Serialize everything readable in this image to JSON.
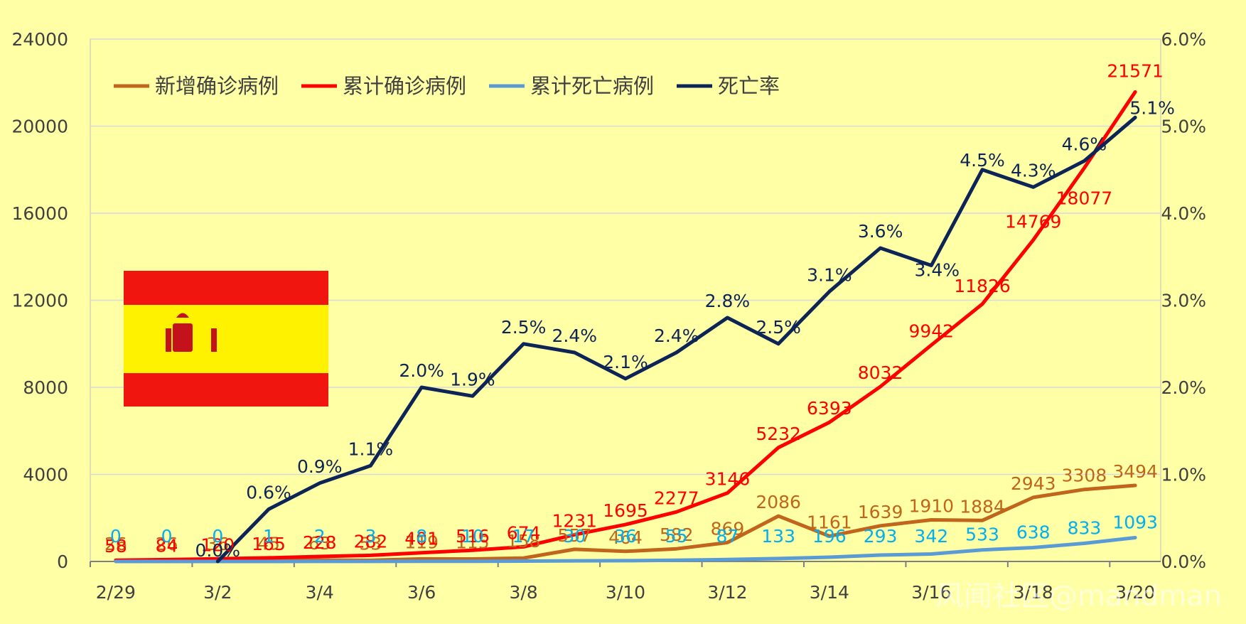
{
  "chart_data": {
    "type": "line",
    "x": [
      "2/29",
      "3/1",
      "3/2",
      "3/3",
      "3/4",
      "3/5",
      "3/6",
      "3/7",
      "3/8",
      "3/9",
      "3/10",
      "3/11",
      "3/12",
      "3/13",
      "3/14",
      "3/15",
      "3/16",
      "3/17",
      "3/18",
      "3/19",
      "3/20"
    ],
    "x_tick_labels": [
      "2/29",
      "3/2",
      "3/4",
      "3/6",
      "3/8",
      "3/10",
      "3/12",
      "3/14",
      "3/16",
      "3/18",
      "3/20"
    ],
    "y_left": {
      "range": [
        0,
        24000
      ],
      "ticks": [
        "0",
        "4000",
        "8000",
        "12000",
        "16000",
        "20000",
        "24000"
      ]
    },
    "y_right": {
      "range": [
        0,
        0.06
      ],
      "ticks": [
        "0.0%",
        "1.0%",
        "2.0%",
        "3.0%",
        "4.0%",
        "5.0%",
        "6.0%"
      ]
    },
    "gridlines": true,
    "legend_position": "top-left",
    "series": [
      {
        "name": "新增确诊病例",
        "color": "#C0651B",
        "axis": "left",
        "values": [
          26,
          26,
          36,
          45,
          63,
          53,
          119,
          115,
          158,
          557,
          464,
          582,
          869,
          2086,
          1161,
          1639,
          1910,
          1884,
          2943,
          3308,
          3494
        ],
        "labels": [
          "26",
          "26",
          "36",
          "45",
          "63",
          "53",
          "119",
          "115",
          "158",
          "557",
          "464",
          "582",
          "869",
          "2086",
          "1161",
          "1639",
          "1910",
          "1884",
          "2943",
          "3308",
          "3494"
        ]
      },
      {
        "name": "累计确诊病例",
        "color": "#FF0000",
        "axis": "left",
        "values": [
          58,
          84,
          120,
          165,
          228,
          282,
          401,
          516,
          674,
          1231,
          1695,
          2277,
          3146,
          5232,
          6393,
          8032,
          9942,
          11826,
          14769,
          18077,
          21571
        ],
        "labels": [
          "58",
          "84",
          "120",
          "165",
          "228",
          "282",
          "401",
          "516",
          "674",
          "1231",
          "1695",
          "2277",
          "3146",
          "5232",
          "6393",
          "8032",
          "9942",
          "11826",
          "14769",
          "18077",
          "21571"
        ]
      },
      {
        "name": "累计死亡病例",
        "color": "#5B9BD5",
        "label_color": "#00B0F0",
        "axis": "left",
        "values": [
          0,
          0,
          0,
          1,
          2,
          3,
          8,
          10,
          17,
          30,
          36,
          55,
          87,
          133,
          196,
          293,
          342,
          533,
          638,
          833,
          1093
        ],
        "labels": [
          "0",
          "0",
          "0",
          "1",
          "2",
          "3",
          "8",
          "10",
          "17",
          "30",
          "36",
          "55",
          "87",
          "133",
          "196",
          "293",
          "342",
          "533",
          "638",
          "833",
          "1093"
        ]
      },
      {
        "name": "死亡率",
        "color": "#0D2456",
        "axis": "right",
        "start_index": 2,
        "values": [
          null,
          null,
          0,
          0.006,
          0.009,
          0.011,
          0.02,
          0.019,
          0.025,
          0.024,
          0.021,
          0.024,
          0.028,
          0.025,
          0.031,
          0.036,
          0.034,
          0.045,
          0.043,
          0.046,
          0.051
        ],
        "labels": [
          null,
          null,
          "0.0%",
          "0.6%",
          "0.9%",
          "1.1%",
          "2.0%",
          "1.9%",
          "2.5%",
          "2.4%",
          "2.1%",
          "2.4%",
          "2.8%",
          "2.5%",
          "3.1%",
          "3.6%",
          "3.4%",
          "4.5%",
          "4.3%",
          "4.6%",
          "5.1%"
        ]
      }
    ]
  },
  "watermark": "风闻社区@mandman",
  "flag": {
    "stripe_color": "#F0150F",
    "middle_color": "#FFF200",
    "emblem_color": "#C4121C"
  }
}
